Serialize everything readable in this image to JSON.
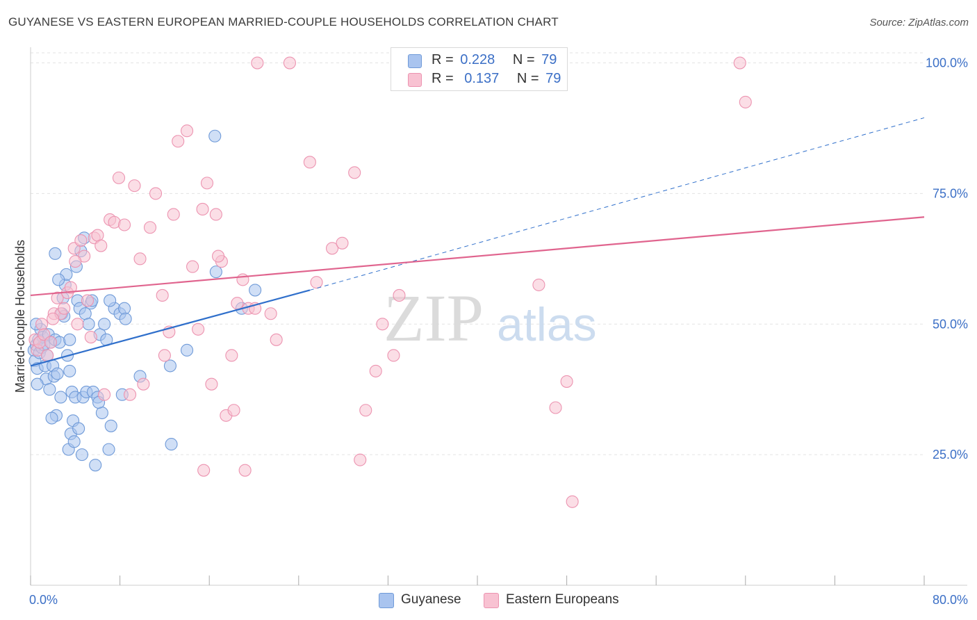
{
  "title": "GUYANESE VS EASTERN EUROPEAN MARRIED-COUPLE HOUSEHOLDS CORRELATION CHART",
  "source": "Source: ZipAtlas.com",
  "watermark": {
    "zip": "ZIP",
    "atlas": "atlas"
  },
  "legend": {
    "r_label": "R =",
    "n_label": "N =",
    "guyanese": {
      "r": "0.228",
      "n": "79"
    },
    "eastern": {
      "r": "0.137",
      "n": "79"
    }
  },
  "colors": {
    "blue_fill": "#a9c4ef",
    "blue_stroke": "#6f9ad8",
    "blue_line": "#2f6fcb",
    "pink_fill": "#f8c2d2",
    "pink_stroke": "#ec93b0",
    "pink_line": "#e0648e",
    "tick_label": "#3b6fc6",
    "grid": "#e3e3e3"
  },
  "chart_data": {
    "type": "scatter",
    "title": "GUYANESE VS EASTERN EUROPEAN MARRIED-COUPLE HOUSEHOLDS CORRELATION CHART",
    "xlabel": "",
    "ylabel": "Married-couple Households",
    "xlim": [
      0,
      80
    ],
    "ylim": [
      0,
      103
    ],
    "x_tick_labels": [
      "0.0%",
      "80.0%"
    ],
    "y_ticks": [
      25,
      50,
      75,
      100
    ],
    "y_tick_labels": [
      "25.0%",
      "50.0%",
      "75.0%",
      "100.0%"
    ],
    "series": [
      {
        "name": "Guyanese",
        "trend": {
          "x0": 0,
          "y0": 42.0,
          "x1": 25,
          "y1": 56.5,
          "x_end": 80,
          "y_end": 89.5
        },
        "points": [
          [
            0.3,
            45
          ],
          [
            0.4,
            43
          ],
          [
            0.5,
            46
          ],
          [
            0.6,
            41.5
          ],
          [
            0.7,
            47
          ],
          [
            0.8,
            44.5
          ],
          [
            0.9,
            49
          ],
          [
            1.0,
            45.5
          ],
          [
            1.1,
            47.5
          ],
          [
            1.2,
            46
          ],
          [
            1.3,
            42
          ],
          [
            1.4,
            39.5
          ],
          [
            1.5,
            44
          ],
          [
            1.6,
            48
          ],
          [
            1.7,
            37.5
          ],
          [
            1.8,
            46.5
          ],
          [
            2.0,
            42
          ],
          [
            2.1,
            40
          ],
          [
            2.2,
            47
          ],
          [
            2.3,
            32.5
          ],
          [
            2.4,
            40.5
          ],
          [
            2.6,
            46.5
          ],
          [
            2.7,
            36
          ],
          [
            2.8,
            52
          ],
          [
            2.9,
            55
          ],
          [
            3.0,
            51.5
          ],
          [
            3.1,
            57.5
          ],
          [
            3.2,
            59.5
          ],
          [
            3.3,
            44
          ],
          [
            3.4,
            26
          ],
          [
            3.5,
            47
          ],
          [
            3.6,
            29
          ],
          [
            3.7,
            37
          ],
          [
            3.8,
            31.5
          ],
          [
            3.9,
            27.5
          ],
          [
            4.0,
            36
          ],
          [
            4.1,
            61
          ],
          [
            4.2,
            54.5
          ],
          [
            4.3,
            30
          ],
          [
            4.4,
            53
          ],
          [
            4.5,
            64
          ],
          [
            4.6,
            25
          ],
          [
            4.7,
            36
          ],
          [
            4.8,
            66.5
          ],
          [
            4.9,
            52
          ],
          [
            5.0,
            37
          ],
          [
            5.2,
            50
          ],
          [
            5.4,
            54
          ],
          [
            5.6,
            37
          ],
          [
            5.8,
            23
          ],
          [
            6.0,
            36
          ],
          [
            6.2,
            48
          ],
          [
            6.4,
            33
          ],
          [
            6.6,
            50
          ],
          [
            6.8,
            47
          ],
          [
            7.0,
            26
          ],
          [
            7.2,
            30.5
          ],
          [
            7.5,
            53
          ],
          [
            8.0,
            52
          ],
          [
            8.2,
            36.5
          ],
          [
            8.4,
            53
          ],
          [
            9.8,
            40
          ],
          [
            12.5,
            42
          ],
          [
            12.6,
            27
          ],
          [
            14,
            45
          ],
          [
            16.5,
            86
          ],
          [
            16.6,
            60
          ],
          [
            18.9,
            53
          ],
          [
            20.1,
            56.5
          ],
          [
            0.5,
            50
          ],
          [
            1.9,
            32
          ],
          [
            2.5,
            58.5
          ],
          [
            3.5,
            41
          ],
          [
            6.1,
            35
          ],
          [
            7.1,
            54.5
          ],
          [
            5.5,
            54.5
          ],
          [
            0.6,
            38.5
          ],
          [
            2.2,
            63.5
          ],
          [
            8.5,
            51
          ]
        ]
      },
      {
        "name": "Eastern Europeans",
        "trend": {
          "x0": 0,
          "y0": 55.5,
          "x1": 80,
          "y1": 70.5
        },
        "points": [
          [
            0.4,
            47
          ],
          [
            0.6,
            45
          ],
          [
            0.8,
            46.5
          ],
          [
            1.0,
            50
          ],
          [
            1.2,
            48
          ],
          [
            1.5,
            44
          ],
          [
            1.8,
            46.5
          ],
          [
            2.1,
            52
          ],
          [
            2.4,
            55
          ],
          [
            2.7,
            52
          ],
          [
            3.0,
            53
          ],
          [
            3.3,
            56
          ],
          [
            3.6,
            57
          ],
          [
            3.9,
            64.5
          ],
          [
            4.2,
            50
          ],
          [
            4.5,
            66
          ],
          [
            4.8,
            63
          ],
          [
            5.1,
            54.5
          ],
          [
            5.4,
            47.5
          ],
          [
            5.7,
            66.5
          ],
          [
            6.0,
            67
          ],
          [
            6.3,
            65
          ],
          [
            6.6,
            36.5
          ],
          [
            7.1,
            70
          ],
          [
            7.5,
            69.5
          ],
          [
            7.9,
            78
          ],
          [
            8.4,
            69
          ],
          [
            8.9,
            36.5
          ],
          [
            9.3,
            76.5
          ],
          [
            9.8,
            62.5
          ],
          [
            10.1,
            38.5
          ],
          [
            10.7,
            68.5
          ],
          [
            11.2,
            75
          ],
          [
            11.8,
            55.5
          ],
          [
            12.4,
            48.5
          ],
          [
            12.8,
            71
          ],
          [
            13.2,
            85
          ],
          [
            14.0,
            87
          ],
          [
            15.0,
            49
          ],
          [
            15.4,
            72
          ],
          [
            15.8,
            77
          ],
          [
            16.2,
            38.5
          ],
          [
            16.6,
            71
          ],
          [
            17.1,
            62
          ],
          [
            17.5,
            32.5
          ],
          [
            18.0,
            44
          ],
          [
            18.5,
            54
          ],
          [
            19.0,
            58.5
          ],
          [
            19.5,
            53
          ],
          [
            20.1,
            53
          ],
          [
            20.3,
            100
          ],
          [
            21.5,
            52
          ],
          [
            22.0,
            47
          ],
          [
            23.2,
            100
          ],
          [
            25.0,
            81
          ],
          [
            25.6,
            58
          ],
          [
            27.0,
            64.5
          ],
          [
            27.9,
            65.5
          ],
          [
            29.0,
            79
          ],
          [
            29.5,
            24
          ],
          [
            30.0,
            33.5
          ],
          [
            30.9,
            41
          ],
          [
            31.5,
            50
          ],
          [
            32.5,
            44
          ],
          [
            33.0,
            55.5
          ],
          [
            45.5,
            57.5
          ],
          [
            47.0,
            34
          ],
          [
            48.0,
            39
          ],
          [
            48.5,
            16
          ],
          [
            63.5,
            100
          ],
          [
            64.0,
            92.5
          ],
          [
            12.0,
            44
          ],
          [
            18.2,
            33.5
          ],
          [
            15.5,
            22
          ],
          [
            19.2,
            22
          ],
          [
            4.0,
            62
          ],
          [
            2.0,
            51
          ],
          [
            16.8,
            63
          ],
          [
            14.5,
            61
          ]
        ]
      }
    ]
  },
  "bottom_legend": {
    "guyanese": "Guyanese",
    "eastern": "Eastern Europeans"
  }
}
